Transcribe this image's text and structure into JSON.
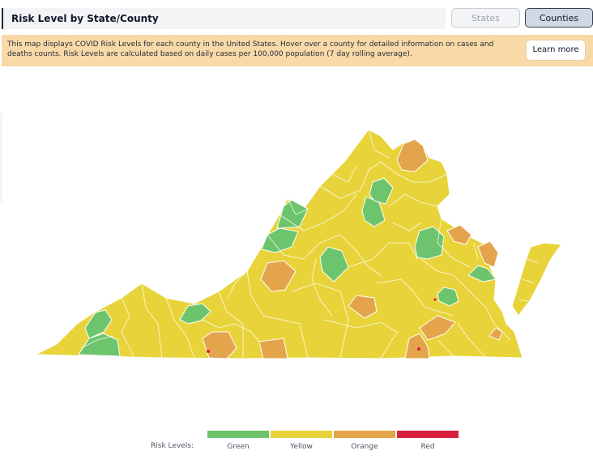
{
  "header": {
    "title": "Risk Level by State/County",
    "states_label": "States",
    "counties_label": "Counties"
  },
  "banner": {
    "text": "This map displays COVID Risk Levels for each county in the United States. Hover over a county for detailed information on cases and deaths counts. Risk Levels are calculated based on daily cases per 100,000 population (7 day rolling average).",
    "learn_more": "Learn more"
  },
  "legend": {
    "title": "Risk Levels:",
    "items": [
      {
        "label": "Green",
        "color": "#6cc46c"
      },
      {
        "label": "Yellow",
        "color": "#e8d43a"
      },
      {
        "label": "Orange",
        "color": "#e3a44c"
      },
      {
        "label": "Red",
        "color": "#d6213f"
      }
    ]
  },
  "colors": {
    "green": "#6cc46c",
    "yellow": "#e8d43a",
    "orange": "#e3a44c",
    "red": "#d6213f",
    "banner": "#fad9a8"
  }
}
